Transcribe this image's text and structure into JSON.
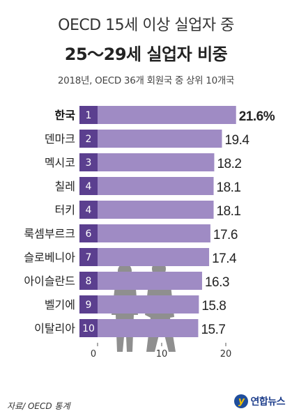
{
  "header": {
    "title_line1": "OECD 15세 이상 실업자 중",
    "title_line2": "25～29세 실업자 비중",
    "subtitle": "2018년, OECD 36개 회원국 중 상위 10개국"
  },
  "footer": {
    "source": "자료/ OECD 통계",
    "logo_text": "연합뉴스"
  },
  "colors": {
    "bar": "#9f8bc4",
    "rank_box": "#5b3f8f",
    "highlight_text": "#111111",
    "text": "#222222"
  },
  "chart_data": {
    "type": "bar",
    "orientation": "horizontal",
    "title": "25～29세 실업자 비중",
    "categories": [
      "한국",
      "덴마크",
      "멕시코",
      "칠레",
      "터키",
      "룩셈부르크",
      "슬로베니아",
      "아이슬란드",
      "벨기에",
      "이탈리아"
    ],
    "ranks": [
      "1",
      "2",
      "3",
      "4",
      "4",
      "6",
      "7",
      "8",
      "9",
      "10"
    ],
    "values": [
      21.6,
      19.4,
      18.2,
      18.1,
      18.1,
      17.6,
      17.4,
      16.3,
      15.8,
      15.7
    ],
    "value_labels": [
      "21.6%",
      "19.4",
      "18.2",
      "18.1",
      "18.1",
      "17.6",
      "17.4",
      "16.3",
      "15.8",
      "15.7"
    ],
    "xlim": [
      0,
      22
    ],
    "x_ticks": [
      "0",
      "10",
      "20"
    ],
    "grid": false,
    "legend": "none"
  }
}
